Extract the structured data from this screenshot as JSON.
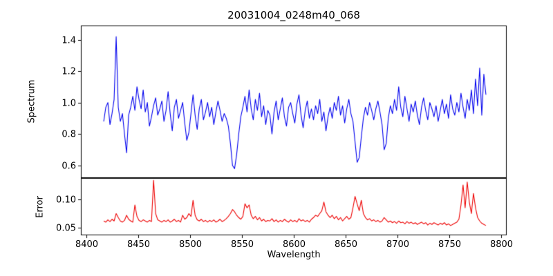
{
  "chart_data": {
    "type": "line",
    "title": "20031004_0248m40_068",
    "xlabel": "Wavelength",
    "xlim": [
      8395,
      8805
    ],
    "xticks": [
      8400,
      8450,
      8500,
      8550,
      8600,
      8650,
      8700,
      8750,
      8800
    ],
    "xtick_labels": [
      "8400",
      "8450",
      "8500",
      "8550",
      "8600",
      "8650",
      "8700",
      "8750",
      "8800"
    ],
    "grid": false,
    "legend": "none",
    "x": [
      8417,
      8419,
      8421,
      8423,
      8425,
      8427,
      8429,
      8431,
      8433,
      8435,
      8437,
      8439,
      8441,
      8443,
      8445,
      8447,
      8449,
      8451,
      8453,
      8455,
      8457,
      8459,
      8461,
      8463,
      8465,
      8467,
      8469,
      8471,
      8473,
      8475,
      8477,
      8479,
      8481,
      8483,
      8485,
      8487,
      8489,
      8491,
      8493,
      8495,
      8497,
      8499,
      8501,
      8503,
      8505,
      8507,
      8509,
      8511,
      8513,
      8515,
      8517,
      8519,
      8521,
      8523,
      8525,
      8527,
      8529,
      8531,
      8533,
      8535,
      8537,
      8539,
      8541,
      8543,
      8545,
      8547,
      8549,
      8551,
      8553,
      8555,
      8557,
      8559,
      8561,
      8563,
      8565,
      8567,
      8569,
      8571,
      8573,
      8575,
      8577,
      8579,
      8581,
      8583,
      8585,
      8587,
      8589,
      8591,
      8593,
      8595,
      8597,
      8599,
      8601,
      8603,
      8605,
      8607,
      8609,
      8611,
      8613,
      8615,
      8617,
      8619,
      8621,
      8623,
      8625,
      8627,
      8629,
      8631,
      8633,
      8635,
      8637,
      8639,
      8641,
      8643,
      8645,
      8647,
      8649,
      8651,
      8653,
      8655,
      8657,
      8659,
      8661,
      8663,
      8665,
      8667,
      8669,
      8671,
      8673,
      8675,
      8677,
      8679,
      8681,
      8683,
      8685,
      8687,
      8689,
      8691,
      8693,
      8695,
      8697,
      8699,
      8701,
      8703,
      8705,
      8707,
      8709,
      8711,
      8713,
      8715,
      8717,
      8719,
      8721,
      8723,
      8725,
      8727,
      8729,
      8731,
      8733,
      8735,
      8737,
      8739,
      8741,
      8743,
      8745,
      8747,
      8749,
      8751,
      8753,
      8755,
      8757,
      8759,
      8761,
      8763,
      8765,
      8767,
      8769,
      8771,
      8773,
      8775,
      8777,
      8779,
      8781,
      8783,
      8785
    ],
    "panels": [
      {
        "ylabel": "Spectrum",
        "color": "#0000ee",
        "ylim": [
          0.52,
          1.49
        ],
        "yticks": [
          0.6,
          0.8,
          1.0,
          1.2,
          1.4
        ],
        "ytick_labels": [
          "0.6",
          "0.8",
          "1.0",
          "1.2",
          "1.4"
        ],
        "y": [
          0.88,
          0.97,
          1.0,
          0.86,
          0.93,
          1.02,
          1.42,
          0.97,
          0.88,
          0.93,
          0.8,
          0.68,
          0.92,
          0.97,
          1.04,
          0.95,
          1.1,
          1.02,
          0.96,
          1.08,
          0.94,
          1.0,
          0.85,
          0.91,
          0.98,
          1.03,
          0.92,
          0.96,
          1.01,
          0.88,
          0.95,
          1.07,
          0.93,
          0.82,
          0.97,
          1.02,
          0.9,
          0.95,
          1.0,
          0.87,
          0.76,
          0.81,
          0.93,
          1.05,
          0.92,
          0.83,
          0.96,
          1.02,
          0.89,
          0.94,
          1.0,
          0.91,
          0.97,
          0.86,
          0.94,
          1.01,
          0.95,
          0.88,
          0.93,
          0.9,
          0.85,
          0.74,
          0.6,
          0.58,
          0.67,
          0.8,
          0.91,
          0.97,
          1.04,
          0.94,
          1.08,
          0.96,
          0.89,
          1.02,
          0.95,
          1.06,
          0.91,
          0.98,
          0.86,
          0.95,
          0.92,
          0.8,
          0.94,
          1.01,
          0.89,
          0.96,
          1.03,
          0.91,
          0.85,
          0.97,
          1.0,
          0.93,
          0.87,
          0.99,
          1.05,
          0.92,
          0.84,
          0.95,
          1.01,
          0.9,
          0.96,
          0.89,
          0.98,
          0.93,
          1.02,
          0.88,
          0.94,
          0.82,
          0.91,
          0.97,
          0.9,
          1.0,
          0.95,
          1.04,
          0.92,
          0.98,
          0.87,
          0.96,
          1.02,
          0.93,
          0.88,
          0.75,
          0.62,
          0.65,
          0.78,
          0.9,
          0.97,
          0.92,
          1.0,
          0.95,
          0.89,
          0.96,
          1.01,
          0.94,
          0.86,
          0.7,
          0.74,
          0.9,
          0.98,
          0.93,
          1.02,
          0.95,
          1.1,
          0.97,
          0.91,
          1.04,
          0.96,
          0.88,
          0.99,
          0.94,
          1.01,
          0.92,
          0.86,
          0.97,
          1.03,
          0.95,
          0.89,
          1.0,
          0.96,
          0.91,
          0.98,
          0.88,
          0.95,
          1.02,
          0.93,
          0.99,
          0.9,
          1.05,
          0.96,
          0.92,
          1.0,
          0.94,
          1.06,
          0.97,
          0.9,
          1.02,
          0.95,
          1.08,
          0.93,
          1.15,
          0.98,
          1.22,
          0.92,
          1.18,
          1.05
        ]
      },
      {
        "ylabel": "Error",
        "color": "#ee0000",
        "ylim": [
          0.037,
          0.137
        ],
        "yticks": [
          0.05,
          0.1
        ],
        "ytick_labels": [
          "0.05",
          "0.10"
        ],
        "y": [
          0.062,
          0.06,
          0.064,
          0.061,
          0.065,
          0.062,
          0.075,
          0.068,
          0.062,
          0.06,
          0.063,
          0.072,
          0.065,
          0.062,
          0.06,
          0.09,
          0.07,
          0.063,
          0.061,
          0.064,
          0.062,
          0.06,
          0.063,
          0.061,
          0.133,
          0.075,
          0.064,
          0.062,
          0.06,
          0.063,
          0.061,
          0.064,
          0.06,
          0.062,
          0.065,
          0.061,
          0.063,
          0.06,
          0.072,
          0.065,
          0.068,
          0.075,
          0.07,
          0.098,
          0.072,
          0.064,
          0.062,
          0.065,
          0.061,
          0.063,
          0.06,
          0.063,
          0.061,
          0.064,
          0.06,
          0.062,
          0.065,
          0.061,
          0.063,
          0.066,
          0.07,
          0.075,
          0.082,
          0.078,
          0.072,
          0.068,
          0.065,
          0.07,
          0.092,
          0.085,
          0.09,
          0.072,
          0.066,
          0.07,
          0.064,
          0.068,
          0.062,
          0.065,
          0.061,
          0.063,
          0.062,
          0.066,
          0.061,
          0.064,
          0.06,
          0.063,
          0.061,
          0.065,
          0.062,
          0.06,
          0.064,
          0.061,
          0.063,
          0.06,
          0.066,
          0.062,
          0.064,
          0.061,
          0.063,
          0.06,
          0.065,
          0.068,
          0.072,
          0.07,
          0.075,
          0.08,
          0.095,
          0.078,
          0.072,
          0.068,
          0.072,
          0.066,
          0.07,
          0.064,
          0.068,
          0.062,
          0.066,
          0.07,
          0.065,
          0.068,
          0.085,
          0.105,
          0.092,
          0.08,
          0.098,
          0.075,
          0.068,
          0.064,
          0.066,
          0.062,
          0.064,
          0.061,
          0.063,
          0.06,
          0.062,
          0.068,
          0.064,
          0.06,
          0.062,
          0.059,
          0.061,
          0.058,
          0.062,
          0.059,
          0.06,
          0.057,
          0.061,
          0.058,
          0.06,
          0.057,
          0.059,
          0.056,
          0.058,
          0.06,
          0.057,
          0.059,
          0.055,
          0.058,
          0.056,
          0.059,
          0.057,
          0.055,
          0.058,
          0.056,
          0.059,
          0.055,
          0.057,
          0.054,
          0.056,
          0.058,
          0.06,
          0.065,
          0.09,
          0.125,
          0.085,
          0.13,
          0.095,
          0.075,
          0.11,
          0.085,
          0.068,
          0.062,
          0.058,
          0.056,
          0.054
        ]
      }
    ]
  }
}
